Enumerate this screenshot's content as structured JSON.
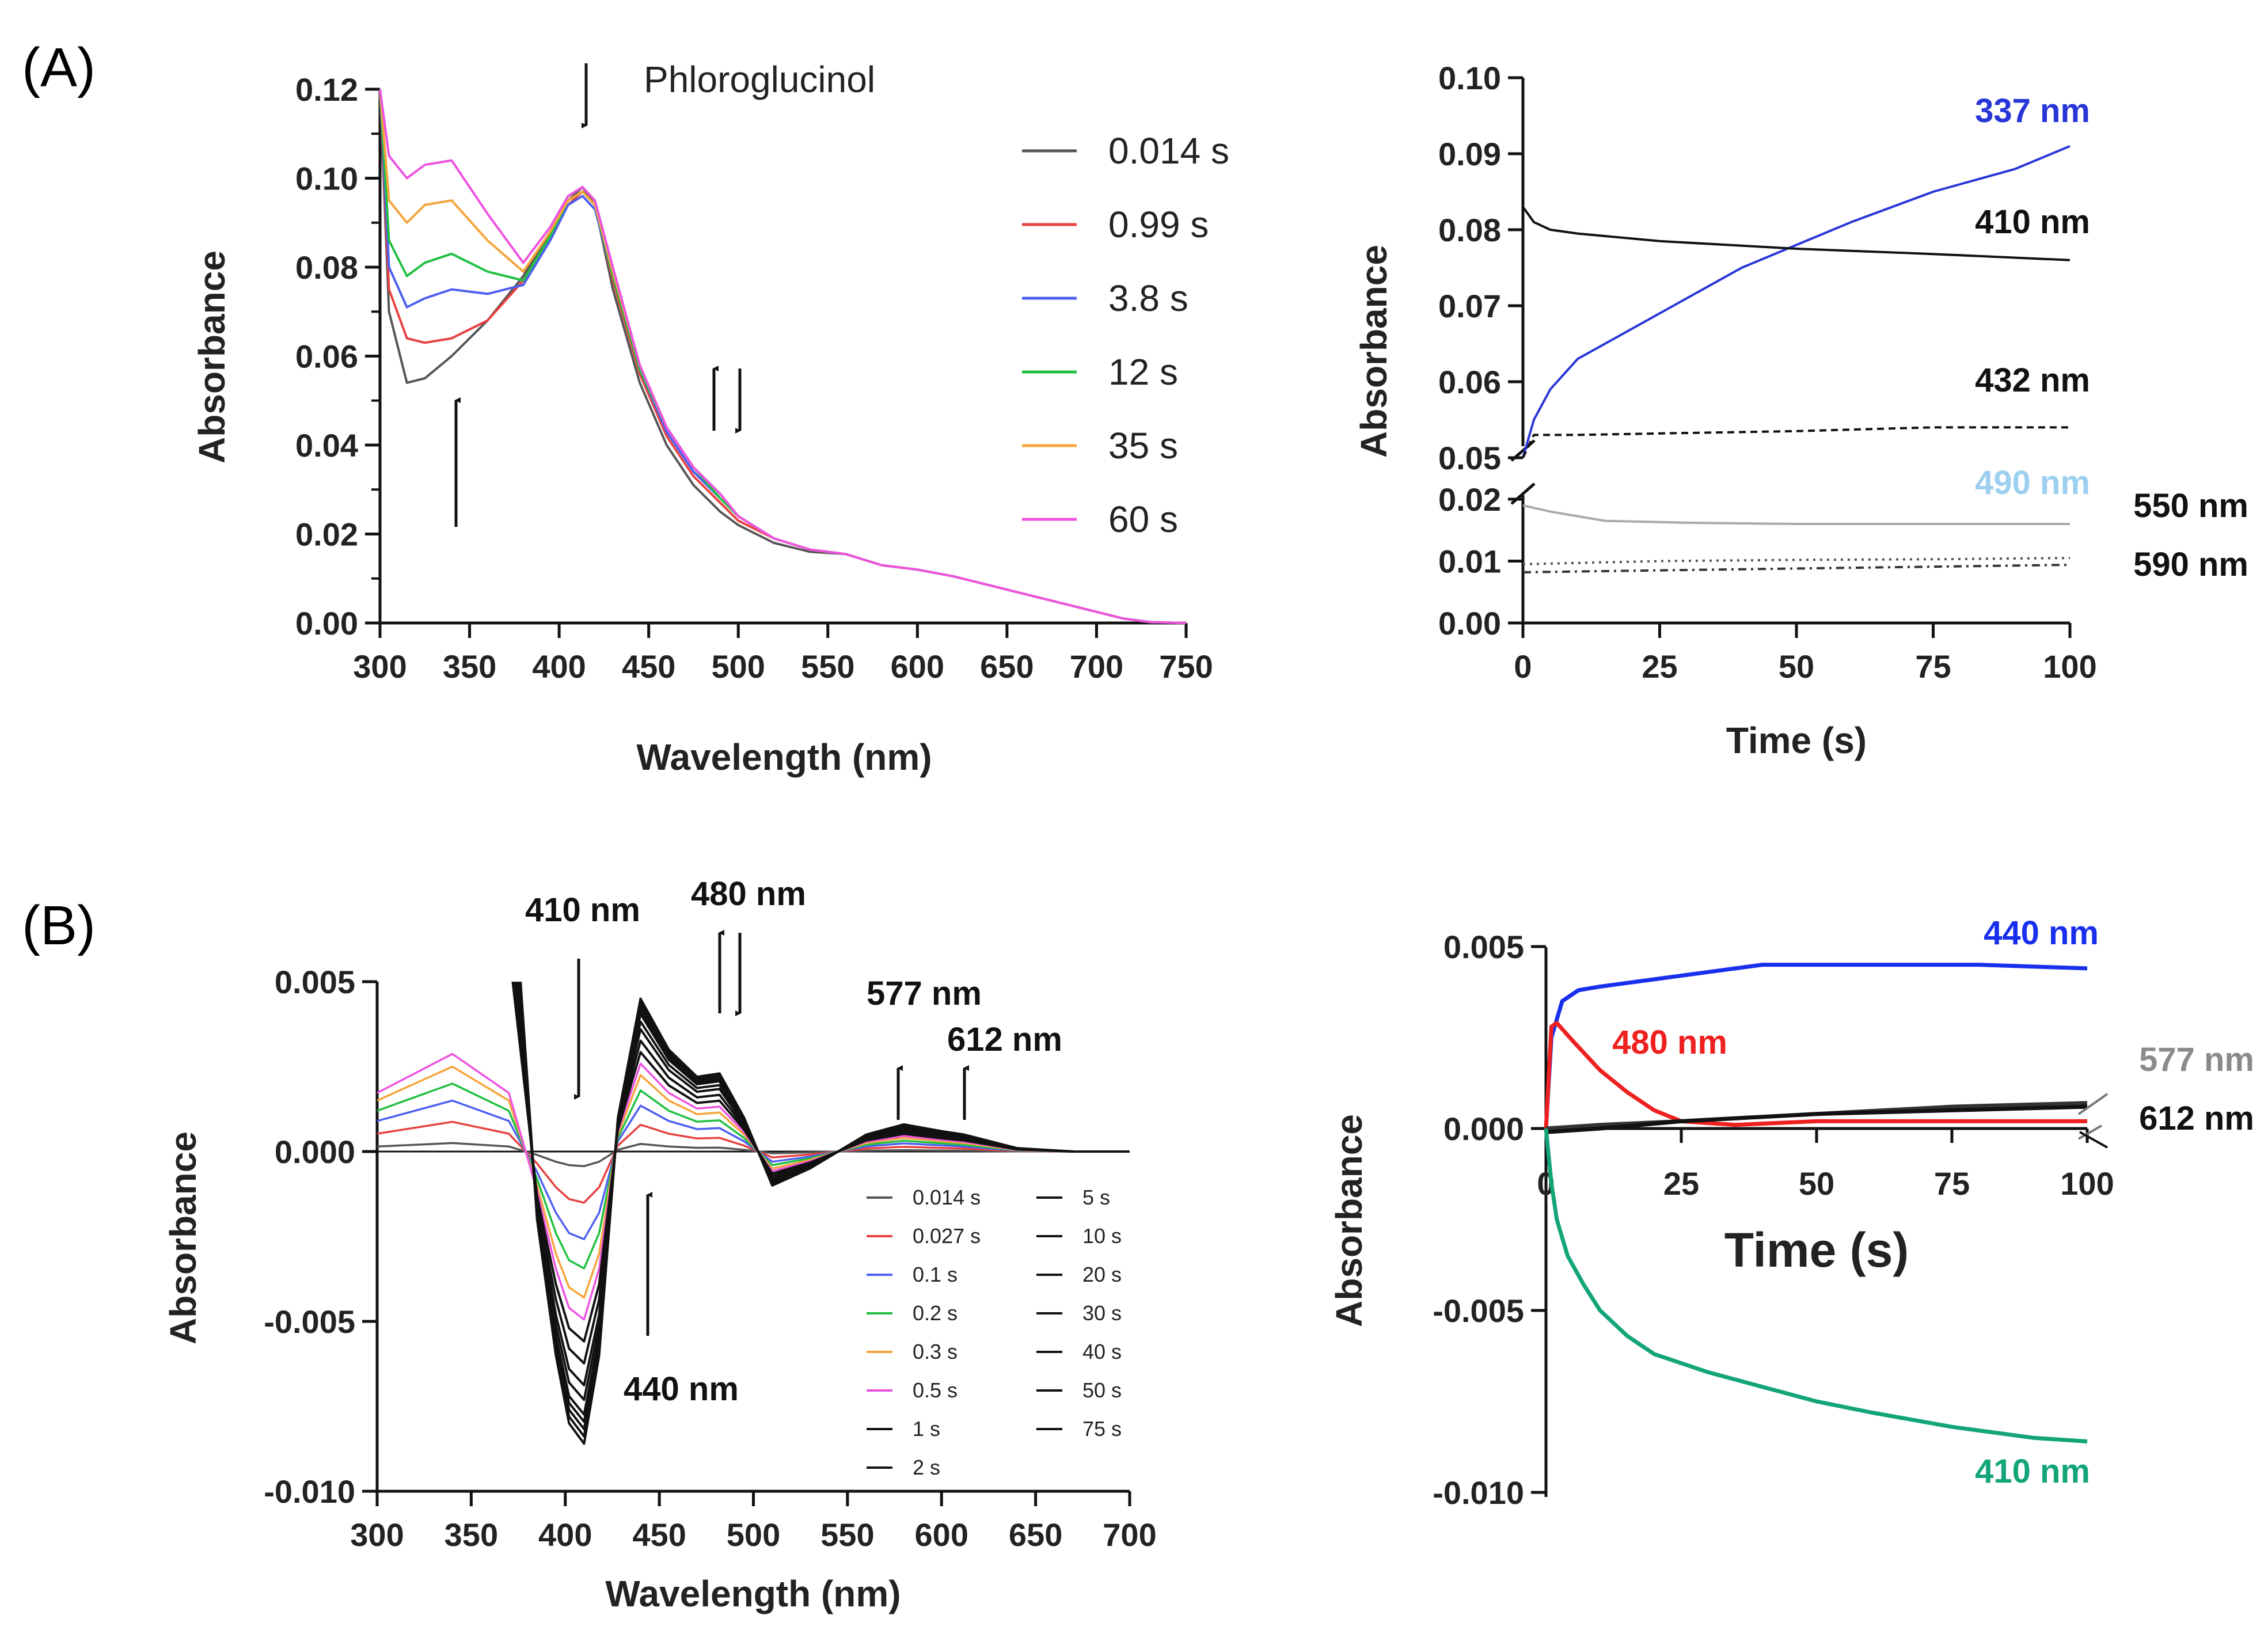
{
  "colors": {
    "c0014": "#555555",
    "c099": "#e8413f",
    "c38": "#4d5ff2",
    "c12": "#20c040",
    "c35": "#f5a53c",
    "c60": "#ee52e0",
    "blue337": "#2836d8",
    "lightblue490": "#9ccff0",
    "blue440": "#1830ee",
    "red480": "#ee2020",
    "green410": "#13a579",
    "gray577": "#8a8a8a",
    "black": "#111111"
  },
  "panels": {
    "a": "(A)",
    "b": "(B)"
  },
  "annotations": {
    "phloroglucinol": "Phloroglucinol",
    "b410": "410 nm",
    "b480": "480 nm",
    "b577": "577 nm",
    "b612": "612 nm",
    "b440": "440 nm"
  },
  "chart_data": [
    {
      "id": "A-left",
      "type": "line",
      "title": "",
      "xlabel": "Wavelength (nm)",
      "ylabel": "Absorbance",
      "xlim": [
        300,
        750
      ],
      "ylim": [
        0,
        0.12
      ],
      "xticks": [
        "300",
        "350",
        "400",
        "450",
        "500",
        "550",
        "600",
        "650",
        "700",
        "750"
      ],
      "yticks": [
        "0.00",
        "0.02",
        "0.04",
        "0.06",
        "0.08",
        "0.10",
        "0.12"
      ],
      "legend": [
        "0.014 s",
        "0.99 s",
        "3.8 s",
        "12 s",
        "35 s",
        "60 s"
      ],
      "series": [
        {
          "name": "0.014 s",
          "x": [
            300,
            305,
            315,
            325,
            340,
            360,
            380,
            395,
            405,
            413,
            420,
            430,
            445,
            460,
            475,
            490,
            500,
            520,
            540,
            560,
            580,
            600,
            620,
            640,
            660,
            680,
            700,
            715,
            730,
            750
          ],
          "y": [
            0.12,
            0.07,
            0.054,
            0.055,
            0.06,
            0.068,
            0.078,
            0.088,
            0.095,
            0.098,
            0.094,
            0.075,
            0.054,
            0.04,
            0.031,
            0.025,
            0.022,
            0.018,
            0.016,
            0.0155,
            0.013,
            0.012,
            0.0105,
            0.0085,
            0.0065,
            0.0045,
            0.0025,
            0.001,
            0.0002,
            0.0
          ]
        },
        {
          "name": "0.99 s",
          "x": [
            300,
            305,
            315,
            325,
            340,
            360,
            380,
            395,
            405,
            413,
            420,
            430,
            445,
            460,
            475,
            490,
            500,
            520,
            540,
            560,
            580,
            600,
            620,
            640,
            660,
            680,
            700,
            715,
            730,
            750
          ],
          "y": [
            0.12,
            0.075,
            0.064,
            0.063,
            0.064,
            0.068,
            0.077,
            0.087,
            0.094,
            0.097,
            0.094,
            0.077,
            0.056,
            0.042,
            0.033,
            0.027,
            0.023,
            0.019,
            0.0165,
            0.0155,
            0.013,
            0.012,
            0.0105,
            0.0085,
            0.0065,
            0.0045,
            0.0025,
            0.001,
            0.0002,
            0.0
          ]
        },
        {
          "name": "3.8 s",
          "x": [
            300,
            305,
            315,
            325,
            340,
            360,
            380,
            395,
            405,
            413,
            420,
            430,
            445,
            460,
            475,
            490,
            500,
            520,
            540,
            560,
            580,
            600,
            620,
            640,
            660,
            680,
            700,
            715,
            730,
            750
          ],
          "y": [
            0.12,
            0.08,
            0.071,
            0.073,
            0.075,
            0.074,
            0.076,
            0.086,
            0.094,
            0.096,
            0.093,
            0.078,
            0.057,
            0.043,
            0.034,
            0.028,
            0.024,
            0.019,
            0.0165,
            0.0155,
            0.013,
            0.012,
            0.0105,
            0.0085,
            0.0065,
            0.0045,
            0.0025,
            0.001,
            0.0002,
            0.0
          ]
        },
        {
          "name": "12 s",
          "x": [
            300,
            305,
            315,
            325,
            340,
            360,
            380,
            395,
            405,
            413,
            420,
            430,
            445,
            460,
            475,
            490,
            500,
            520,
            540,
            560,
            580,
            600,
            620,
            640,
            660,
            680,
            700,
            715,
            730,
            750
          ],
          "y": [
            0.12,
            0.086,
            0.078,
            0.081,
            0.083,
            0.079,
            0.077,
            0.087,
            0.095,
            0.097,
            0.094,
            0.078,
            0.057,
            0.044,
            0.035,
            0.028,
            0.024,
            0.019,
            0.0165,
            0.0155,
            0.013,
            0.012,
            0.0105,
            0.0085,
            0.0065,
            0.0045,
            0.0025,
            0.001,
            0.0002,
            0.0
          ]
        },
        {
          "name": "35 s",
          "x": [
            300,
            305,
            315,
            325,
            340,
            360,
            380,
            395,
            405,
            413,
            420,
            430,
            445,
            460,
            475,
            490,
            500,
            520,
            540,
            560,
            580,
            600,
            620,
            640,
            660,
            680,
            700,
            715,
            730,
            750
          ],
          "y": [
            0.12,
            0.095,
            0.09,
            0.094,
            0.095,
            0.086,
            0.079,
            0.088,
            0.095,
            0.097,
            0.094,
            0.079,
            0.058,
            0.044,
            0.035,
            0.029,
            0.024,
            0.019,
            0.0165,
            0.0155,
            0.013,
            0.012,
            0.0105,
            0.0085,
            0.0065,
            0.0045,
            0.0025,
            0.001,
            0.0002,
            0.0
          ]
        },
        {
          "name": "60 s",
          "x": [
            300,
            305,
            315,
            325,
            340,
            360,
            380,
            395,
            405,
            413,
            420,
            430,
            445,
            460,
            475,
            490,
            500,
            520,
            540,
            560,
            580,
            600,
            620,
            640,
            660,
            680,
            700,
            715,
            730,
            750
          ],
          "y": [
            0.12,
            0.105,
            0.1,
            0.103,
            0.104,
            0.092,
            0.081,
            0.089,
            0.096,
            0.098,
            0.095,
            0.08,
            0.058,
            0.044,
            0.035,
            0.029,
            0.024,
            0.019,
            0.0165,
            0.0155,
            0.013,
            0.012,
            0.0105,
            0.0085,
            0.0065,
            0.0045,
            0.0025,
            0.001,
            0.0002,
            0.0
          ]
        }
      ]
    },
    {
      "id": "A-right",
      "type": "line",
      "xlabel": "Time (s)",
      "ylabel": "Absorbance",
      "xlim": [
        0,
        100
      ],
      "broken_axis": {
        "upper": [
          0.05,
          0.1
        ],
        "lower": [
          0,
          0.02
        ]
      },
      "xticks": [
        "0",
        "25",
        "50",
        "75",
        "100"
      ],
      "yticks_upper": [
        "0.05",
        "0.06",
        "0.07",
        "0.08",
        "0.09",
        "0.10"
      ],
      "yticks_lower": [
        "0.00",
        "0.01",
        "0.02"
      ],
      "labels": [
        "337 nm",
        "410 nm",
        "432 nm",
        "490 nm",
        "550 nm",
        "590 nm"
      ],
      "series": [
        {
          "name": "337 nm",
          "x": [
            0,
            2,
            5,
            10,
            20,
            30,
            40,
            50,
            60,
            75,
            90,
            100
          ],
          "y": [
            0.05,
            0.055,
            0.059,
            0.063,
            0.067,
            0.071,
            0.075,
            0.078,
            0.081,
            0.085,
            0.088,
            0.091
          ]
        },
        {
          "name": "410 nm",
          "x": [
            0,
            2,
            5,
            10,
            25,
            50,
            75,
            100
          ],
          "y": [
            0.083,
            0.081,
            0.08,
            0.0795,
            0.0785,
            0.0775,
            0.0768,
            0.076
          ]
        },
        {
          "name": "432 nm",
          "x": [
            0,
            2,
            10,
            25,
            50,
            75,
            100
          ],
          "y": [
            0.05,
            0.053,
            0.053,
            0.0532,
            0.0535,
            0.054,
            0.054
          ]
        },
        {
          "name": "490 nm",
          "x": [
            0,
            5,
            15,
            30,
            50,
            75,
            100
          ],
          "y": [
            0.019,
            0.018,
            0.0165,
            0.0162,
            0.016,
            0.016,
            0.016
          ]
        },
        {
          "name": "550 nm",
          "x": [
            0,
            25,
            50,
            75,
            100
          ],
          "y": [
            0.0095,
            0.01,
            0.0102,
            0.0103,
            0.0105
          ]
        },
        {
          "name": "590 nm",
          "x": [
            0,
            25,
            50,
            75,
            100
          ],
          "y": [
            0.0082,
            0.0085,
            0.0088,
            0.0091,
            0.0094
          ]
        }
      ]
    },
    {
      "id": "B-left",
      "type": "line",
      "xlabel": "Wavelength (nm)",
      "ylabel": "Absorbance",
      "xlim": [
        300,
        700
      ],
      "ylim": [
        -0.01,
        0.005
      ],
      "xticks": [
        "300",
        "350",
        "400",
        "450",
        "500",
        "550",
        "600",
        "650",
        "700"
      ],
      "yticks": [
        "0.005",
        "0.000",
        "-0.005",
        "-0.010"
      ],
      "legend": [
        "0.014 s",
        "0.027 s",
        "0.1 s",
        "0.2 s",
        "0.3 s",
        "0.5 s",
        "1 s",
        "2 s",
        "5 s",
        "10 s",
        "20 s",
        "30 s",
        "40 s",
        "50 s",
        "75 s"
      ],
      "series_shape": {
        "x": [
          300,
          340,
          370,
          385,
          395,
          402,
          410,
          418,
          428,
          440,
          455,
          470,
          482,
          495,
          510,
          530,
          560,
          580,
          600,
          612,
          640,
          670,
          700
        ],
        "base": [
          0.003,
          0.005,
          0.003,
          -0.002,
          -0.006,
          -0.008,
          -0.0086,
          -0.006,
          0.001,
          0.0045,
          0.003,
          0.0022,
          0.0023,
          0.001,
          -0.001,
          -0.0005,
          0.0005,
          0.0008,
          0.0006,
          0.0005,
          0.0001,
          0.0,
          0.0
        ]
      },
      "series": [
        {
          "name": "0.014 s",
          "scale": 0.1
        },
        {
          "name": "0.027 s",
          "scale": 0.35
        },
        {
          "name": "0.1 s",
          "scale": 0.6
        },
        {
          "name": "0.2 s",
          "scale": 0.8
        },
        {
          "name": "0.3 s",
          "scale": 1.0
        },
        {
          "name": "0.5 s",
          "scale": 1.15
        },
        {
          "name": "1 s",
          "scale": 1.3
        },
        {
          "name": "2 s",
          "scale": 1.45
        },
        {
          "name": "5 s",
          "scale": 1.6
        },
        {
          "name": "10 s",
          "scale": 1.7
        },
        {
          "name": "20 s",
          "scale": 1.8
        },
        {
          "name": "30 s",
          "scale": 1.85
        },
        {
          "name": "40 s",
          "scale": 1.9
        },
        {
          "name": "50 s",
          "scale": 1.95
        },
        {
          "name": "75 s",
          "scale": 2.0
        }
      ]
    },
    {
      "id": "B-right",
      "type": "line",
      "xlabel": "Time (s)",
      "ylabel": "Absorbance",
      "xlim": [
        0,
        100
      ],
      "ylim": [
        -0.01,
        0.005
      ],
      "xticks": [
        "0",
        "25",
        "50",
        "75",
        "100"
      ],
      "yticks": [
        "0.005",
        "0.000",
        "-0.005",
        "-0.010"
      ],
      "labels": [
        "440 nm",
        "480 nm",
        "577 nm",
        "612 nm",
        "410 nm"
      ],
      "series": [
        {
          "name": "440 nm",
          "x": [
            0,
            1,
            3,
            6,
            10,
            20,
            30,
            40,
            60,
            80,
            100
          ],
          "y": [
            0.0,
            0.0025,
            0.0035,
            0.0038,
            0.0039,
            0.0041,
            0.0043,
            0.0045,
            0.0045,
            0.0045,
            0.0044
          ]
        },
        {
          "name": "480 nm",
          "x": [
            0,
            1,
            2,
            5,
            10,
            15,
            20,
            25,
            35,
            50,
            75,
            100
          ],
          "y": [
            0.0,
            0.0028,
            0.0029,
            0.0024,
            0.0016,
            0.001,
            0.0005,
            0.0002,
            0.0001,
            0.0002,
            0.0002,
            0.0002
          ]
        },
        {
          "name": "577 nm",
          "x": [
            0,
            10,
            25,
            50,
            75,
            100
          ],
          "y": [
            0.0,
            0.0001,
            0.0002,
            0.0004,
            0.0006,
            0.0007
          ]
        },
        {
          "name": "612 nm",
          "x": [
            0,
            10,
            25,
            50,
            75,
            100
          ],
          "y": [
            -0.0001,
            0.0,
            0.0002,
            0.0004,
            0.0005,
            0.0006
          ]
        },
        {
          "name": "410 nm",
          "x": [
            0,
            1,
            2,
            4,
            7,
            10,
            15,
            20,
            30,
            40,
            50,
            60,
            75,
            90,
            100
          ],
          "y": [
            0.0,
            -0.0015,
            -0.0025,
            -0.0035,
            -0.0043,
            -0.005,
            -0.0057,
            -0.0062,
            -0.0067,
            -0.0071,
            -0.0075,
            -0.0078,
            -0.0082,
            -0.0085,
            -0.0086
          ]
        }
      ]
    }
  ]
}
